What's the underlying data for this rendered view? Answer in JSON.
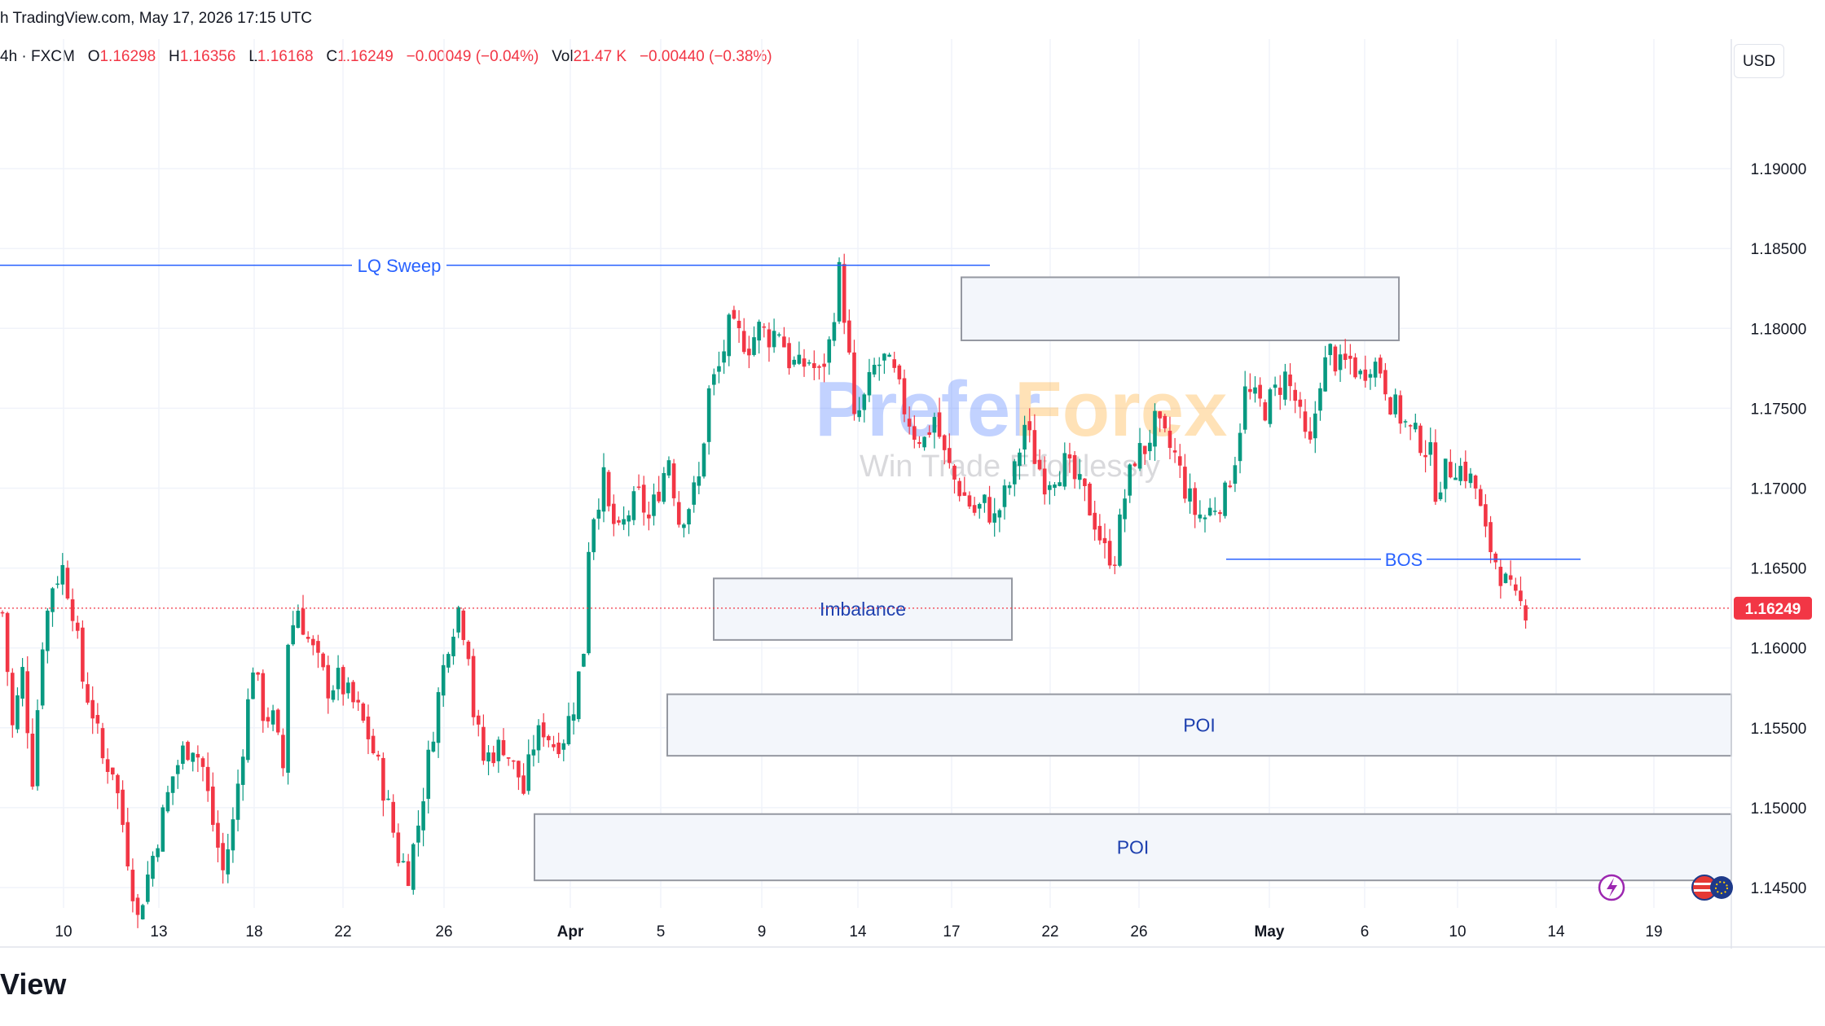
{
  "header": {
    "source_text": "h TradingView.com, May 17, 2026 17:15 UTC"
  },
  "legend": {
    "symbol_text": "4h · FXCM",
    "open_label": "O",
    "open": "1.16298",
    "high_label": "H",
    "high": "1.16356",
    "low_label": "L",
    "low": "1.16168",
    "close_label": "C",
    "close": "1.16249",
    "change": "−0.00049 (−0.04%)",
    "vol_label": "Vol",
    "vol": "21.47 K",
    "vol_change": "−0.00440 (−0.38%)"
  },
  "currency_button": "USD",
  "footer": {
    "brand_fragment": "View"
  },
  "colors": {
    "up": "#089981",
    "down": "#f23645",
    "annotation": "#2962ff",
    "zone_fill": "#f3f6fb",
    "zone_border": "#9598a1"
  },
  "icons": [
    "lightning-icon",
    "flag-icon"
  ],
  "watermark": {
    "title_left": "Prefer",
    "title_right": "Forex",
    "subtitle": "Win Trade Effortlessly"
  },
  "chart_data": {
    "type": "candlestick",
    "instrument": "4h · FXCM",
    "ylim": [
      1.1405,
      1.1905
    ],
    "y_ticks": [
      "1.19000",
      "1.18500",
      "1.18000",
      "1.17500",
      "1.17000",
      "1.16500",
      "1.16000",
      "1.15500",
      "1.15000",
      "1.14500"
    ],
    "x_ticks": [
      "10",
      "13",
      "18",
      "22",
      "26",
      "Apr",
      "5",
      "9",
      "14",
      "17",
      "22",
      "26",
      "May",
      "6",
      "10",
      "14",
      "19"
    ],
    "last_price": "1.16249",
    "price_path": [
      [
        0,
        1.1622
      ],
      [
        2,
        1.155
      ],
      [
        4,
        1.1585
      ],
      [
        6,
        1.152
      ],
      [
        8,
        1.1605
      ],
      [
        10,
        1.164
      ],
      [
        12,
        1.165
      ],
      [
        14,
        1.1625
      ],
      [
        16,
        1.158
      ],
      [
        18,
        1.156
      ],
      [
        20,
        1.153
      ],
      [
        22,
        1.1525
      ],
      [
        24,
        1.149
      ],
      [
        26,
        1.145
      ],
      [
        27,
        1.143
      ],
      [
        28,
        1.1445
      ],
      [
        30,
        1.147
      ],
      [
        32,
        1.1495
      ],
      [
        34,
        1.152
      ],
      [
        36,
        1.1535
      ],
      [
        38,
        1.154
      ],
      [
        40,
        1.1525
      ],
      [
        42,
        1.149
      ],
      [
        44,
        1.146
      ],
      [
        46,
        1.149
      ],
      [
        48,
        1.154
      ],
      [
        50,
        1.159
      ],
      [
        52,
        1.156
      ],
      [
        54,
        1.1555
      ],
      [
        56,
        1.1525
      ],
      [
        57,
        1.1605
      ],
      [
        59,
        1.1625
      ],
      [
        61,
        1.1605
      ],
      [
        63,
        1.159
      ],
      [
        65,
        1.1575
      ],
      [
        67,
        1.158
      ],
      [
        69,
        1.157
      ],
      [
        71,
        1.156
      ],
      [
        73,
        1.1545
      ],
      [
        75,
        1.1525
      ],
      [
        77,
        1.15
      ],
      [
        79,
        1.147
      ],
      [
        81,
        1.146
      ],
      [
        83,
        1.149
      ],
      [
        85,
        1.153
      ],
      [
        87,
        1.157
      ],
      [
        89,
        1.1605
      ],
      [
        91,
        1.1625
      ],
      [
        93,
        1.16
      ],
      [
        94,
        1.156
      ],
      [
        96,
        1.153
      ],
      [
        98,
        1.1535
      ],
      [
        100,
        1.154
      ],
      [
        102,
        1.1525
      ],
      [
        103,
        1.152
      ],
      [
        104,
        1.151
      ],
      [
        106,
        1.154
      ],
      [
        108,
        1.155
      ],
      [
        110,
        1.154
      ],
      [
        112,
        1.1545
      ],
      [
        114,
        1.1565
      ],
      [
        116,
        1.16
      ],
      [
        117,
        1.1665
      ],
      [
        118,
        1.1685
      ],
      [
        120,
        1.1705
      ],
      [
        121,
        1.1685
      ],
      [
        123,
        1.167
      ],
      [
        125,
        1.1685
      ],
      [
        127,
        1.1695
      ],
      [
        129,
        1.168
      ],
      [
        131,
        1.17
      ],
      [
        133,
        1.172
      ],
      [
        135,
        1.168
      ],
      [
        137,
        1.169
      ],
      [
        139,
        1.1705
      ],
      [
        141,
        1.176
      ],
      [
        143,
        1.1775
      ],
      [
        145,
        1.18
      ],
      [
        147,
        1.1795
      ],
      [
        149,
        1.179
      ],
      [
        151,
        1.18
      ],
      [
        153,
        1.1795
      ],
      [
        155,
        1.18
      ],
      [
        157,
        1.178
      ],
      [
        159,
        1.1775
      ],
      [
        161,
        1.178
      ],
      [
        163,
        1.177
      ],
      [
        165,
        1.179
      ],
      [
        167,
        1.1835
      ],
      [
        168,
        1.181
      ],
      [
        169,
        1.178
      ],
      [
        170,
        1.174
      ],
      [
        172,
        1.1755
      ],
      [
        174,
        1.1775
      ],
      [
        176,
        1.178
      ],
      [
        178,
        1.177
      ],
      [
        180,
        1.175
      ],
      [
        182,
        1.1735
      ],
      [
        184,
        1.173
      ],
      [
        186,
        1.1745
      ],
      [
        188,
        1.172
      ],
      [
        190,
        1.1705
      ],
      [
        192,
        1.1695
      ],
      [
        194,
        1.1685
      ],
      [
        196,
        1.169
      ],
      [
        198,
        1.168
      ],
      [
        200,
        1.1695
      ],
      [
        202,
        1.171
      ],
      [
        204,
        1.174
      ],
      [
        206,
        1.172
      ],
      [
        208,
        1.1705
      ],
      [
        210,
        1.171
      ],
      [
        212,
        1.1715
      ],
      [
        214,
        1.1705
      ],
      [
        216,
        1.1695
      ],
      [
        218,
        1.168
      ],
      [
        220,
        1.166
      ],
      [
        222,
        1.1658
      ],
      [
        224,
        1.1695
      ],
      [
        226,
        1.172
      ],
      [
        228,
        1.1725
      ],
      [
        230,
        1.174
      ],
      [
        232,
        1.173
      ],
      [
        234,
        1.172
      ],
      [
        236,
        1.17
      ],
      [
        238,
        1.1685
      ],
      [
        240,
        1.1682
      ],
      [
        242,
        1.169
      ],
      [
        244,
        1.1695
      ],
      [
        246,
        1.172
      ],
      [
        248,
        1.176
      ],
      [
        250,
        1.1755
      ],
      [
        252,
        1.175
      ],
      [
        254,
        1.176
      ],
      [
        256,
        1.177
      ],
      [
        258,
        1.1755
      ],
      [
        260,
        1.173
      ],
      [
        261,
        1.1725
      ],
      [
        263,
        1.177
      ],
      [
        265,
        1.1785
      ],
      [
        267,
        1.1775
      ],
      [
        269,
        1.178
      ],
      [
        271,
        1.177
      ],
      [
        273,
        1.178
      ],
      [
        275,
        1.1775
      ],
      [
        277,
        1.1755
      ],
      [
        279,
        1.1745
      ],
      [
        281,
        1.1735
      ],
      [
        283,
        1.173
      ],
      [
        285,
        1.172
      ],
      [
        286,
        1.17
      ],
      [
        288,
        1.171
      ],
      [
        290,
        1.1715
      ],
      [
        292,
        1.171
      ],
      [
        294,
        1.17
      ],
      [
        296,
        1.167
      ],
      [
        298,
        1.1655
      ],
      [
        300,
        1.164
      ],
      [
        302,
        1.1628
      ],
      [
        304,
        1.1625
      ]
    ],
    "annotations": [
      {
        "label": "LQ Sweep",
        "price": 1.18395,
        "type": "line"
      },
      {
        "label": "BOS",
        "price": 1.16555,
        "type": "line"
      },
      {
        "label": "",
        "type": "zone",
        "from": 1.17925,
        "to": 1.1832
      },
      {
        "label": "Imbalance",
        "type": "zone",
        "from": 1.1605,
        "to": 1.16435
      },
      {
        "label": "POI",
        "type": "zone",
        "from": 1.15325,
        "to": 1.1571
      },
      {
        "label": "POI",
        "type": "zone",
        "from": 1.14545,
        "to": 1.1496
      }
    ]
  }
}
